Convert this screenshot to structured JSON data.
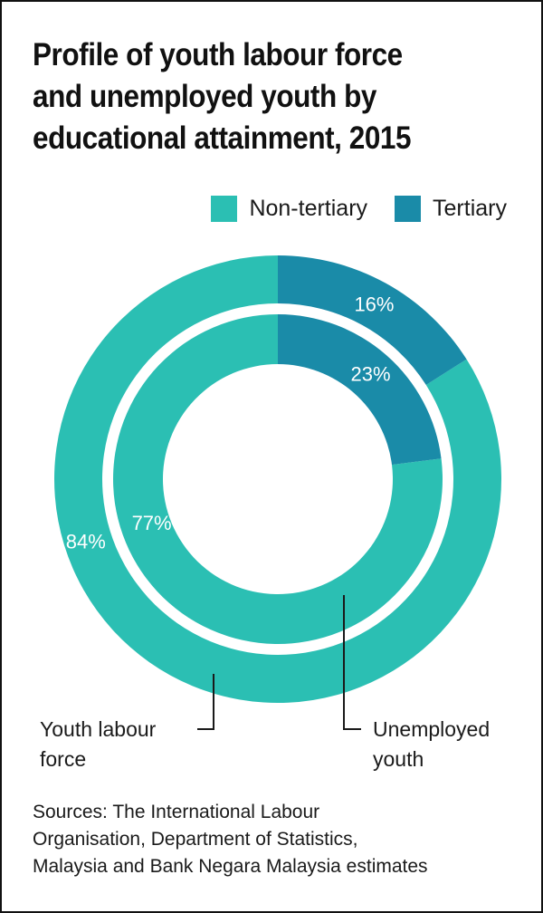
{
  "title_lines": [
    "Profile of youth labour force",
    "and unemployed youth by",
    "educational attainment, 2015"
  ],
  "colors": {
    "non_tertiary": "#2bbfb3",
    "tertiary": "#1a8ba8",
    "text": "#1a1a1a",
    "label_on_slice": "#ffffff"
  },
  "chart_data": {
    "type": "pie",
    "variant": "nested-donut",
    "title": "Profile of youth labour force and unemployed youth by educational attainment, 2015",
    "categories": [
      "Non-tertiary",
      "Tertiary"
    ],
    "legend": [
      "Non-tertiary",
      "Tertiary"
    ],
    "legend_position": "top-right",
    "series": [
      {
        "name": "Youth labour force",
        "ring": "outer",
        "values": [
          84,
          16
        ],
        "labels": [
          "84%",
          "16%"
        ],
        "callout_lines": [
          "Youth labour",
          "force"
        ]
      },
      {
        "name": "Unemployed youth",
        "ring": "inner",
        "values": [
          77,
          23
        ],
        "labels": [
          "77%",
          "23%"
        ],
        "callout_lines": [
          "Unemployed",
          "youth"
        ]
      }
    ]
  },
  "sources_lines": [
    "Sources: The International Labour",
    "Organisation, Department of Statistics,",
    "Malaysia and Bank Negara Malaysia estimates"
  ]
}
